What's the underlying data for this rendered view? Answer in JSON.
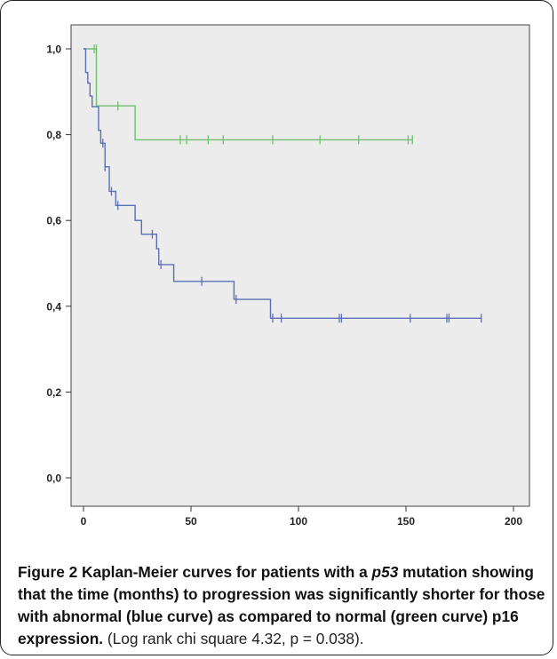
{
  "chart_data": {
    "type": "line",
    "subtype": "kaplan-meier",
    "xlim": [
      -5,
      200
    ],
    "ylim": [
      0,
      1.0
    ],
    "x_ticks": [
      0,
      50,
      100,
      150,
      200
    ],
    "y_ticks": [
      0.0,
      0.2,
      0.4,
      0.6,
      0.8,
      1.0
    ],
    "y_tick_labels": [
      "0,0",
      "0,2",
      "0,4",
      "0,6",
      "0,8",
      "1,0"
    ],
    "grid": false,
    "plot_background": "#ececec",
    "series": [
      {
        "color": "#6fbf6f",
        "steps": [
          [
            0,
            1.0
          ],
          [
            6,
            1.0
          ],
          [
            6,
            0.867
          ],
          [
            24,
            0.867
          ],
          [
            24,
            0.788
          ],
          [
            153,
            0.788
          ]
        ],
        "censored": [
          [
            5,
            1.0
          ],
          [
            6,
            1.0
          ],
          [
            16,
            0.867
          ],
          [
            45,
            0.788
          ],
          [
            48,
            0.788
          ],
          [
            58,
            0.788
          ],
          [
            65,
            0.788
          ],
          [
            88,
            0.788
          ],
          [
            110,
            0.788
          ],
          [
            128,
            0.788
          ],
          [
            151,
            0.788
          ],
          [
            153,
            0.788
          ]
        ]
      },
      {
        "color": "#5b6fb5",
        "steps": [
          [
            0,
            1.0
          ],
          [
            1,
            1.0
          ],
          [
            1,
            0.945
          ],
          [
            2,
            0.945
          ],
          [
            2,
            0.92
          ],
          [
            3,
            0.92
          ],
          [
            3,
            0.89
          ],
          [
            4,
            0.89
          ],
          [
            4,
            0.865
          ],
          [
            7,
            0.865
          ],
          [
            7,
            0.81
          ],
          [
            8,
            0.81
          ],
          [
            8,
            0.78
          ],
          [
            10,
            0.78
          ],
          [
            10,
            0.725
          ],
          [
            12,
            0.725
          ],
          [
            12,
            0.668
          ],
          [
            15,
            0.668
          ],
          [
            15,
            0.635
          ],
          [
            24,
            0.635
          ],
          [
            24,
            0.6
          ],
          [
            27,
            0.6
          ],
          [
            27,
            0.568
          ],
          [
            34,
            0.568
          ],
          [
            34,
            0.534
          ],
          [
            35,
            0.534
          ],
          [
            35,
            0.497
          ],
          [
            42,
            0.497
          ],
          [
            42,
            0.458
          ],
          [
            70,
            0.458
          ],
          [
            70,
            0.416
          ],
          [
            87,
            0.416
          ],
          [
            87,
            0.372
          ],
          [
            185,
            0.372
          ]
        ],
        "censored": [
          [
            9,
            0.78
          ],
          [
            10,
            0.725
          ],
          [
            13,
            0.668
          ],
          [
            16,
            0.635
          ],
          [
            32,
            0.568
          ],
          [
            36,
            0.497
          ],
          [
            55,
            0.458
          ],
          [
            71,
            0.416
          ],
          [
            88,
            0.372
          ],
          [
            92,
            0.372
          ],
          [
            119,
            0.372
          ],
          [
            120,
            0.372
          ],
          [
            152,
            0.372
          ],
          [
            169,
            0.372
          ],
          [
            170,
            0.372
          ],
          [
            185,
            0.372
          ]
        ]
      }
    ]
  },
  "caption": {
    "figure_label": "Figure 2",
    "title_part1": "Kaplan-Meier curves for patients with a ",
    "title_italic": "p53",
    "title_part2": " mutation showing that the time (months) to progression was significantly shorter for those with abnormal (blue curve) as compared to normal (green curve) p16 expression.",
    "rest": "(Log rank chi square 4.32, p = 0.038)."
  }
}
